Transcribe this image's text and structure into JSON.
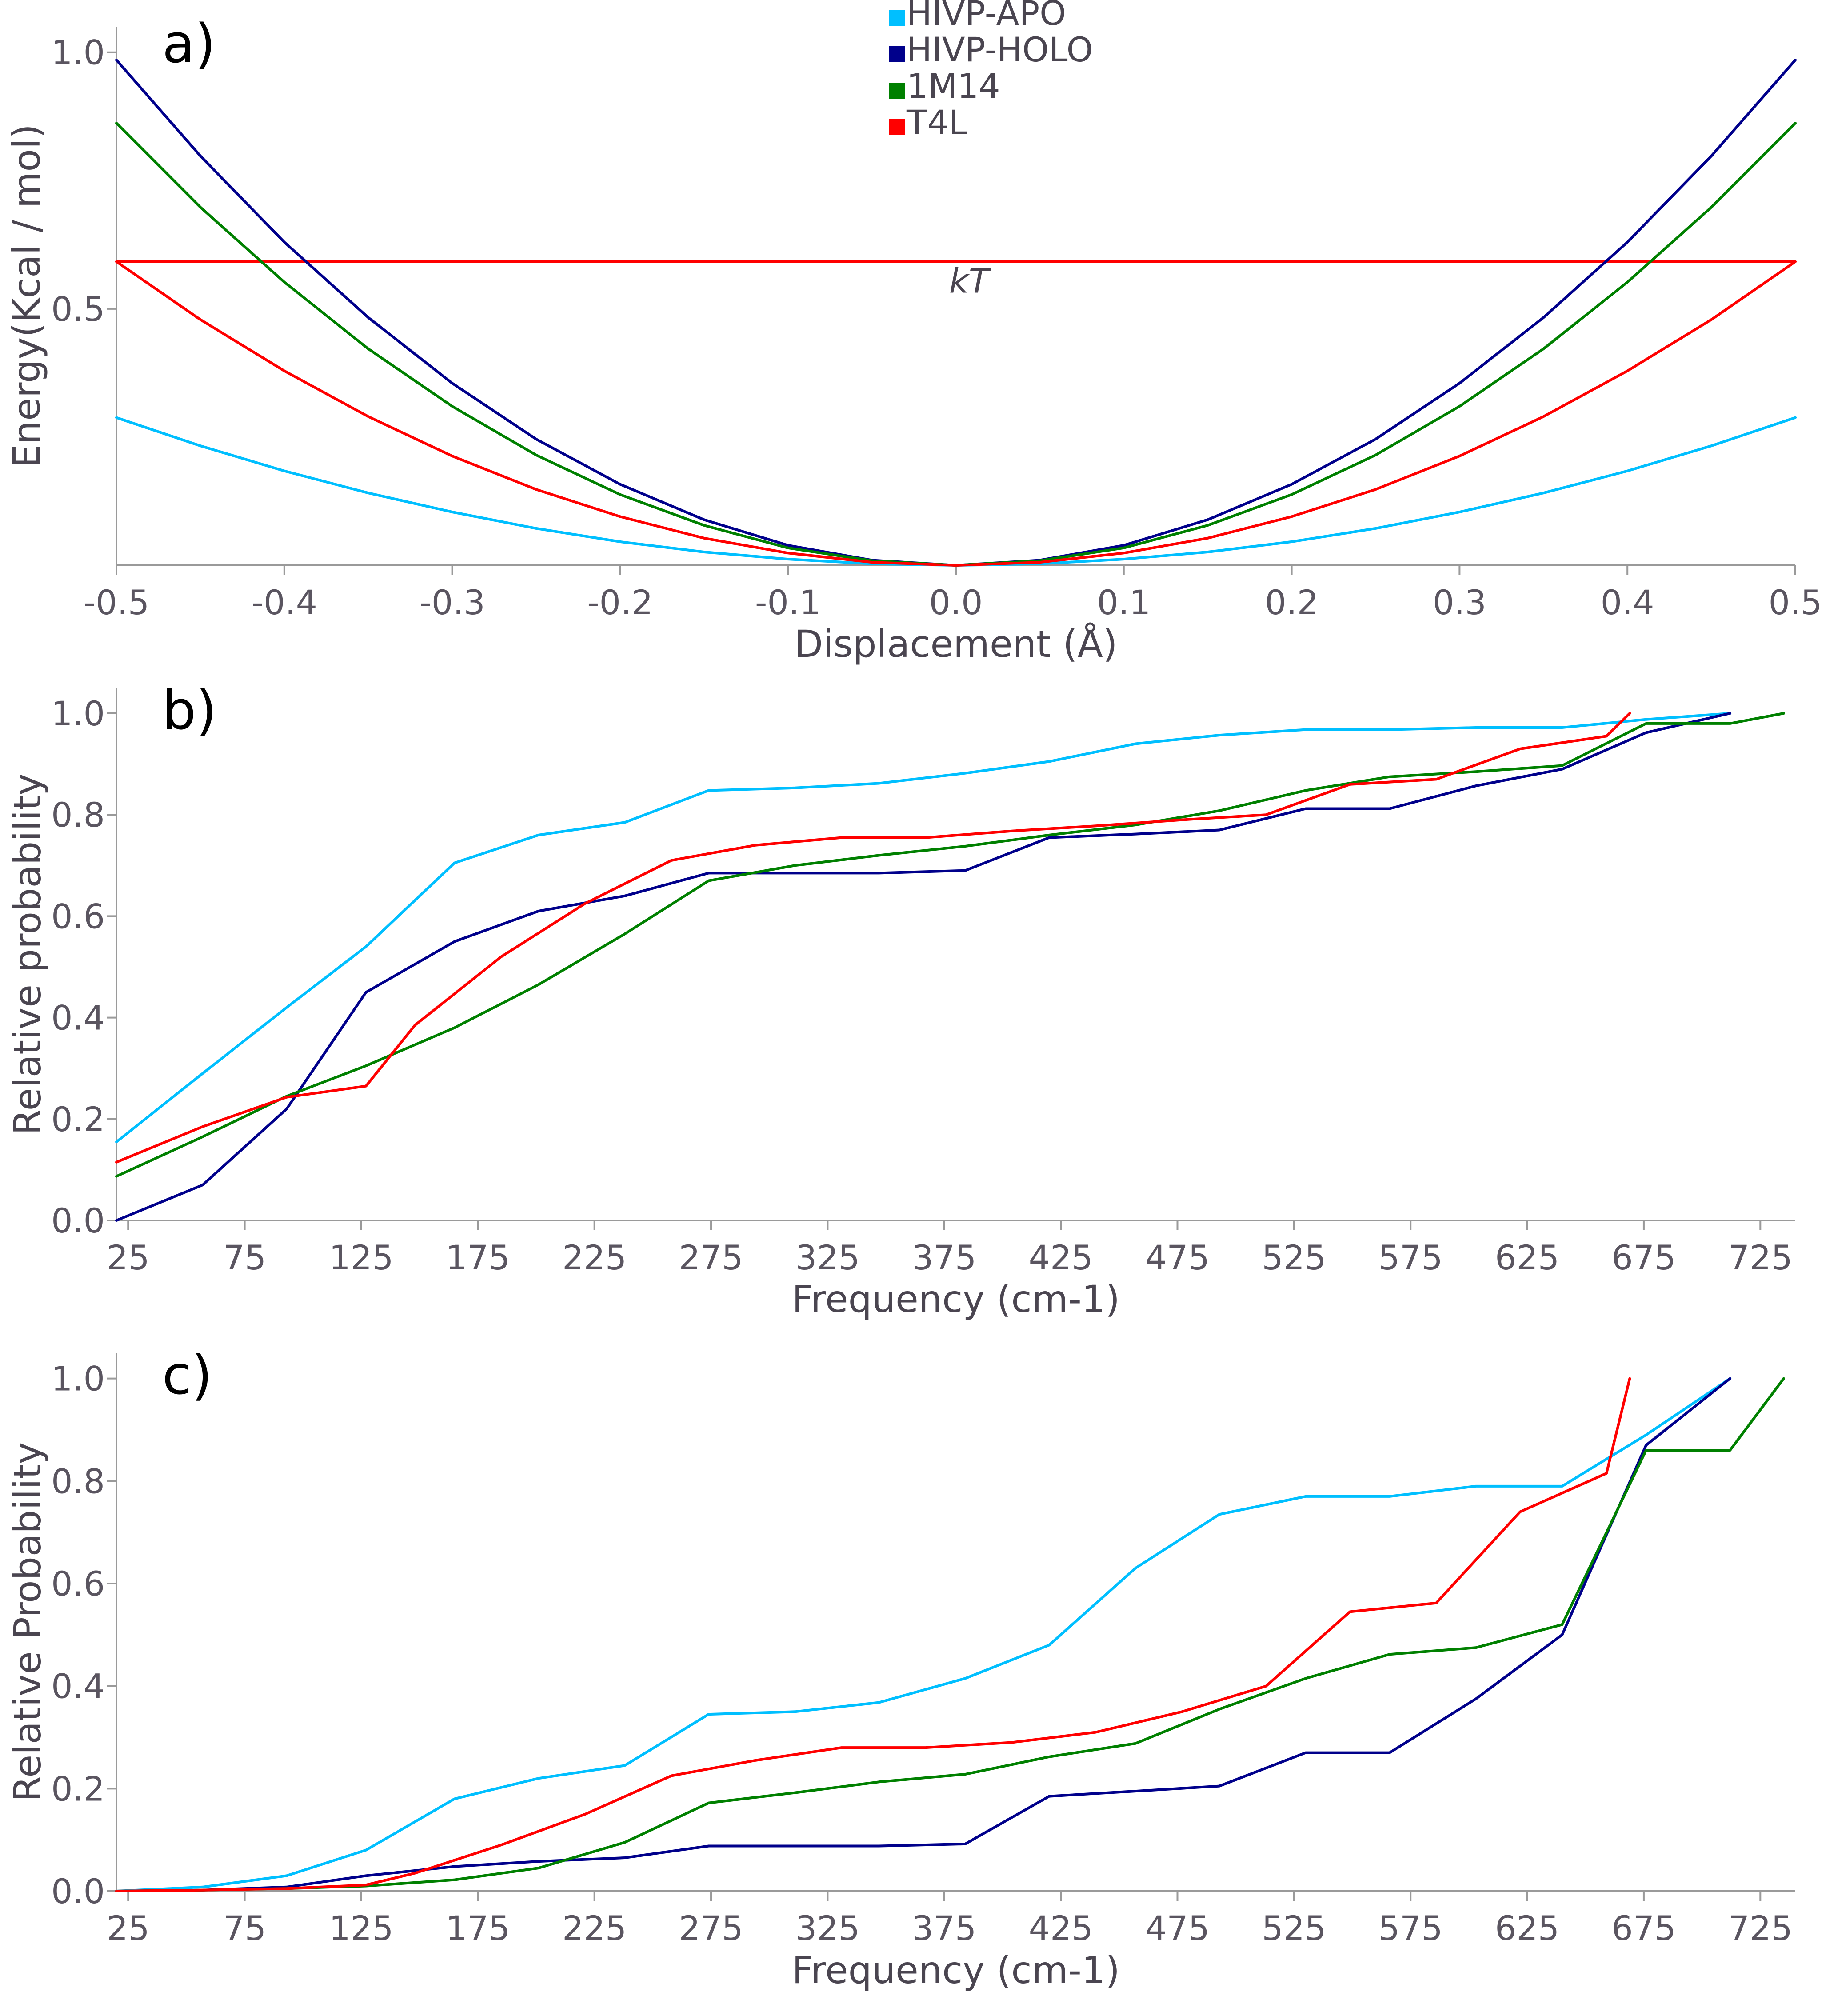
{
  "legend": [
    {
      "name": "HIVP-APO",
      "color": "#00bfff"
    },
    {
      "name": "HIVP-HOLO",
      "color": "#00008b"
    },
    {
      "name": "1M14",
      "color": "#008000"
    },
    {
      "name": "T4L",
      "color": "#ff0000"
    }
  ],
  "chart_data": [
    {
      "panel_label": "a)",
      "type": "line",
      "title": "",
      "xlabel": "Displacement (Å)",
      "ylabel": "Energy(Kcal / mol)",
      "xlim": [
        -0.5,
        0.5
      ],
      "ylim": [
        0,
        1.0
      ],
      "x_ticks": [
        -0.5,
        -0.4,
        -0.3,
        -0.2,
        -0.1,
        0.0,
        0.1,
        0.2,
        0.3,
        0.4,
        0.5
      ],
      "x_tick_labels": [
        "-0.5",
        "-0.4",
        "-0.3",
        "-0.2",
        "-0.1",
        "0.0",
        "0.1",
        "0.2",
        "0.3",
        "0.4",
        "0.5"
      ],
      "y_ticks": [
        0.5,
        1.0
      ],
      "y_tick_labels": [
        "0.5",
        "1.0"
      ],
      "grid": false,
      "x": [
        -0.5,
        -0.45,
        -0.4,
        -0.35,
        -0.3,
        -0.25,
        -0.2,
        -0.15,
        -0.1,
        -0.05,
        0.0,
        0.05,
        0.1,
        0.15,
        0.2,
        0.25,
        0.3,
        0.35,
        0.4,
        0.45,
        0.5
      ],
      "series": [
        {
          "name": "HIVP-APO",
          "color": "#00bfff",
          "values": [
            0.288,
            0.233,
            0.184,
            0.141,
            0.104,
            0.072,
            0.046,
            0.026,
            0.012,
            0.003,
            0.0,
            0.003,
            0.012,
            0.026,
            0.046,
            0.072,
            0.104,
            0.141,
            0.184,
            0.233,
            0.288
          ]
        },
        {
          "name": "HIVP-HOLO",
          "color": "#00008b",
          "values": [
            0.985,
            0.798,
            0.63,
            0.483,
            0.355,
            0.246,
            0.158,
            0.089,
            0.039,
            0.01,
            0.0,
            0.01,
            0.039,
            0.089,
            0.158,
            0.246,
            0.355,
            0.483,
            0.63,
            0.798,
            0.985
          ]
        },
        {
          "name": "1M14",
          "color": "#008000",
          "values": [
            0.862,
            0.698,
            0.552,
            0.422,
            0.31,
            0.215,
            0.138,
            0.078,
            0.034,
            0.009,
            0.0,
            0.009,
            0.034,
            0.078,
            0.138,
            0.215,
            0.31,
            0.422,
            0.552,
            0.698,
            0.862
          ]
        },
        {
          "name": "T4L",
          "color": "#ff0000",
          "values": [
            0.592,
            0.479,
            0.379,
            0.29,
            0.213,
            0.148,
            0.095,
            0.053,
            0.024,
            0.006,
            0.0,
            0.006,
            0.024,
            0.053,
            0.095,
            0.148,
            0.213,
            0.29,
            0.379,
            0.479,
            0.592
          ]
        }
      ],
      "reference_line": {
        "y": 0.592,
        "label": "kT",
        "color": "#ff0000"
      }
    },
    {
      "panel_label": "b)",
      "type": "line",
      "title": "",
      "xlabel": "Frequency  (cm-1)",
      "ylabel": "Relative probability",
      "xlim": [
        20,
        740
      ],
      "ylim": [
        0,
        1.0
      ],
      "x_ticks": [
        25,
        75,
        125,
        175,
        225,
        275,
        325,
        375,
        425,
        475,
        525,
        575,
        625,
        675,
        725
      ],
      "x_tick_labels": [
        "25",
        "75",
        "125",
        "175",
        "225",
        "275",
        "325",
        "375",
        "425",
        "475",
        "525",
        "575",
        "625",
        "675",
        "725"
      ],
      "y_ticks": [
        0.0,
        0.2,
        0.4,
        0.6,
        0.8,
        1.0
      ],
      "y_tick_labels": [
        "0.0",
        "0.2",
        "0.4",
        "0.6",
        "0.8",
        "1.0"
      ],
      "grid": false,
      "series": [
        {
          "name": "HIVP-APO",
          "color": "#00bfff",
          "x": [
            20,
            57,
            93,
            127,
            165,
            201,
            238,
            274,
            311,
            347,
            384,
            420,
            457,
            493,
            530,
            566,
            603,
            640,
            676,
            712
          ],
          "values": [
            0.155,
            0.29,
            0.42,
            0.54,
            0.705,
            0.76,
            0.785,
            0.848,
            0.853,
            0.862,
            0.882,
            0.905,
            0.94,
            0.957,
            0.968,
            0.968,
            0.972,
            0.972,
            0.988,
            1.0
          ]
        },
        {
          "name": "HIVP-HOLO",
          "color": "#00008b",
          "x": [
            20,
            57,
            93,
            127,
            165,
            201,
            238,
            274,
            311,
            347,
            384,
            420,
            457,
            493,
            530,
            566,
            603,
            640,
            676,
            712
          ],
          "values": [
            0.0,
            0.07,
            0.22,
            0.45,
            0.55,
            0.61,
            0.64,
            0.685,
            0.685,
            0.685,
            0.69,
            0.755,
            0.762,
            0.77,
            0.812,
            0.812,
            0.857,
            0.89,
            0.962,
            1.0
          ]
        },
        {
          "name": "1M14",
          "color": "#008000",
          "x": [
            20,
            57,
            93,
            127,
            165,
            201,
            238,
            274,
            311,
            347,
            384,
            420,
            457,
            493,
            530,
            566,
            603,
            640,
            676,
            712,
            735
          ],
          "values": [
            0.087,
            0.165,
            0.245,
            0.305,
            0.38,
            0.465,
            0.565,
            0.67,
            0.7,
            0.72,
            0.738,
            0.76,
            0.78,
            0.808,
            0.848,
            0.875,
            0.885,
            0.897,
            0.98,
            0.98,
            1.0
          ]
        },
        {
          "name": "T4L",
          "color": "#ff0000",
          "x": [
            20,
            57,
            93,
            127,
            148,
            185,
            221,
            258,
            294,
            331,
            367,
            404,
            440,
            477,
            513,
            549,
            586,
            622,
            659,
            669
          ],
          "values": [
            0.115,
            0.185,
            0.243,
            0.265,
            0.385,
            0.52,
            0.625,
            0.71,
            0.74,
            0.755,
            0.755,
            0.768,
            0.778,
            0.79,
            0.8,
            0.86,
            0.87,
            0.93,
            0.955,
            1.0
          ]
        }
      ]
    },
    {
      "panel_label": "c)",
      "type": "line",
      "title": "",
      "xlabel": "Frequency  (cm-1)",
      "ylabel": "Relative Probability",
      "xlim": [
        20,
        740
      ],
      "ylim": [
        0,
        1.0
      ],
      "x_ticks": [
        25,
        75,
        125,
        175,
        225,
        275,
        325,
        375,
        425,
        475,
        525,
        575,
        625,
        675,
        725
      ],
      "x_tick_labels": [
        "25",
        "75",
        "125",
        "175",
        "225",
        "275",
        "325",
        "375",
        "425",
        "475",
        "525",
        "575",
        "625",
        "675",
        "725"
      ],
      "y_ticks": [
        0.0,
        0.2,
        0.4,
        0.6,
        0.8,
        1.0
      ],
      "y_tick_labels": [
        "0.0",
        "0.2",
        "0.4",
        "0.6",
        "0.8",
        "1.0"
      ],
      "grid": false,
      "series": [
        {
          "name": "HIVP-APO",
          "color": "#00bfff",
          "x": [
            20,
            57,
            93,
            127,
            165,
            201,
            238,
            274,
            311,
            347,
            384,
            420,
            457,
            493,
            530,
            566,
            603,
            640,
            676,
            712
          ],
          "values": [
            0.0,
            0.008,
            0.03,
            0.08,
            0.18,
            0.22,
            0.245,
            0.345,
            0.35,
            0.368,
            0.415,
            0.48,
            0.63,
            0.735,
            0.77,
            0.77,
            0.79,
            0.79,
            0.89,
            1.0
          ]
        },
        {
          "name": "HIVP-HOLO",
          "color": "#00008b",
          "x": [
            20,
            57,
            93,
            127,
            165,
            201,
            238,
            274,
            311,
            347,
            384,
            420,
            457,
            493,
            530,
            566,
            603,
            640,
            676,
            712
          ],
          "values": [
            0.0,
            0.002,
            0.008,
            0.03,
            0.048,
            0.058,
            0.065,
            0.088,
            0.088,
            0.088,
            0.092,
            0.185,
            0.195,
            0.205,
            0.27,
            0.27,
            0.375,
            0.5,
            0.87,
            1.0
          ]
        },
        {
          "name": "1M14",
          "color": "#008000",
          "x": [
            20,
            57,
            93,
            127,
            165,
            201,
            238,
            274,
            311,
            347,
            384,
            420,
            457,
            493,
            530,
            566,
            603,
            640,
            676,
            712,
            735
          ],
          "values": [
            0.0,
            0.002,
            0.005,
            0.01,
            0.022,
            0.045,
            0.095,
            0.172,
            0.192,
            0.213,
            0.228,
            0.262,
            0.288,
            0.355,
            0.415,
            0.462,
            0.475,
            0.52,
            0.86,
            0.86,
            1.0
          ]
        },
        {
          "name": "T4L",
          "color": "#ff0000",
          "x": [
            20,
            57,
            93,
            127,
            148,
            185,
            221,
            258,
            294,
            331,
            367,
            404,
            440,
            477,
            513,
            549,
            586,
            622,
            659,
            669
          ],
          "values": [
            0.0,
            0.002,
            0.005,
            0.012,
            0.035,
            0.09,
            0.15,
            0.225,
            0.255,
            0.28,
            0.28,
            0.29,
            0.31,
            0.35,
            0.4,
            0.545,
            0.562,
            0.74,
            0.815,
            1.0
          ]
        }
      ]
    }
  ]
}
